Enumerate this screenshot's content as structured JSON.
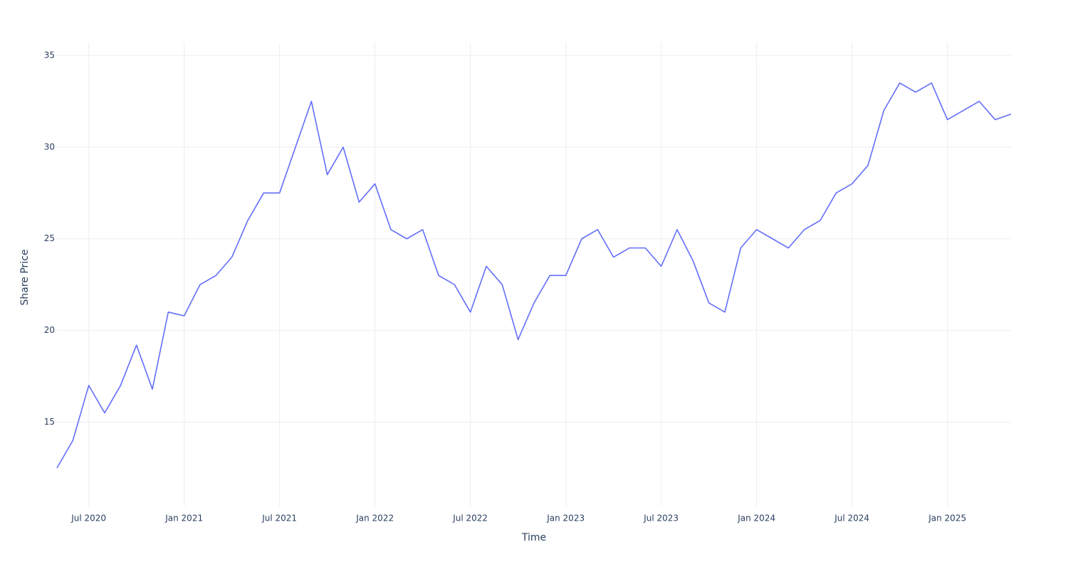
{
  "chart_data": {
    "type": "line",
    "xlabel": "Time",
    "ylabel": "Share Price",
    "x": [
      "2020-05",
      "2020-06",
      "2020-07",
      "2020-08",
      "2020-09",
      "2020-10",
      "2020-11",
      "2020-12",
      "2021-01",
      "2021-02",
      "2021-03",
      "2021-04",
      "2021-05",
      "2021-06",
      "2021-07",
      "2021-08",
      "2021-09",
      "2021-10",
      "2021-11",
      "2021-12",
      "2022-01",
      "2022-02",
      "2022-03",
      "2022-04",
      "2022-05",
      "2022-06",
      "2022-07",
      "2022-08",
      "2022-09",
      "2022-10",
      "2022-11",
      "2022-12",
      "2023-01",
      "2023-02",
      "2023-03",
      "2023-04",
      "2023-05",
      "2023-06",
      "2023-07",
      "2023-08",
      "2023-09",
      "2023-10",
      "2023-11",
      "2023-12",
      "2024-01",
      "2024-02",
      "2024-03",
      "2024-04",
      "2024-05",
      "2024-06",
      "2024-07",
      "2024-08",
      "2024-09",
      "2024-10",
      "2024-11",
      "2024-12",
      "2025-01",
      "2025-02",
      "2025-03",
      "2025-04",
      "2025-05"
    ],
    "series": [
      {
        "name": "Share Price",
        "color": "#636efa",
        "values": [
          12.5,
          14,
          17,
          15.5,
          17,
          19.2,
          16.8,
          21,
          20.8,
          22.5,
          23,
          24,
          26,
          27.5,
          27.5,
          30,
          32.5,
          28.5,
          30,
          27,
          28,
          25.5,
          25,
          25.5,
          23,
          22.5,
          21,
          23.5,
          22.5,
          19.5,
          21.5,
          23,
          23,
          25,
          25.5,
          24,
          24.5,
          24.5,
          23.5,
          25.5,
          23.8,
          21.5,
          21,
          24.5,
          25.5,
          25,
          24.5,
          25.5,
          26,
          27.5,
          28,
          29,
          32,
          33.5,
          33,
          33.5,
          31.5,
          32,
          32.5,
          31.5,
          31.8
        ]
      }
    ],
    "xlim": [
      "2020-05",
      "2025-05"
    ],
    "xticks": [
      {
        "value": "2020-07",
        "label": "Jul 2020"
      },
      {
        "value": "2021-01",
        "label": "Jan 2021"
      },
      {
        "value": "2021-07",
        "label": "Jul 2021"
      },
      {
        "value": "2022-01",
        "label": "Jan 2022"
      },
      {
        "value": "2022-07",
        "label": "Jul 2022"
      },
      {
        "value": "2023-01",
        "label": "Jan 2023"
      },
      {
        "value": "2023-07",
        "label": "Jul 2023"
      },
      {
        "value": "2024-01",
        "label": "Jan 2024"
      },
      {
        "value": "2024-07",
        "label": "Jul 2024"
      },
      {
        "value": "2025-01",
        "label": "Jan 2025"
      }
    ],
    "ylim": [
      10.4,
      35.7
    ],
    "yticks": [
      15,
      20,
      25,
      30,
      35
    ],
    "grid": true
  }
}
